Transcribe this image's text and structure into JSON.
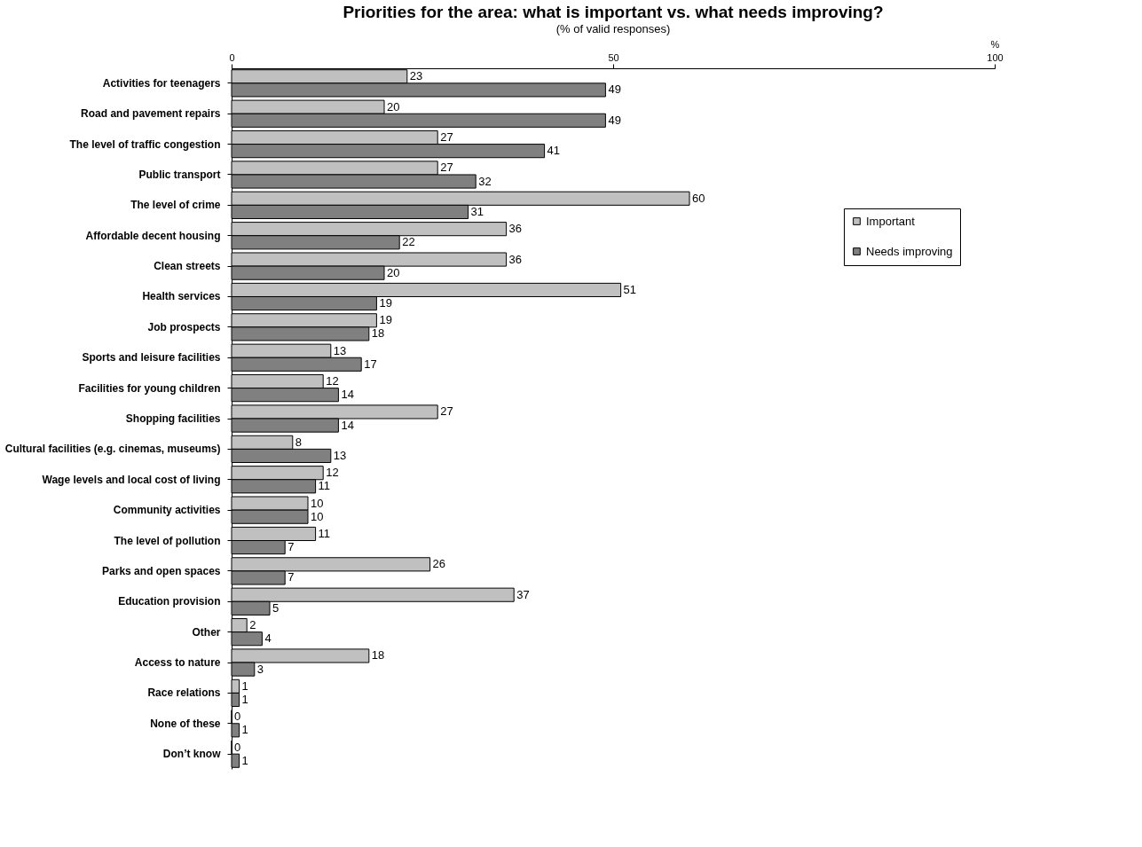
{
  "chart_data": {
    "type": "bar",
    "orientation": "horizontal",
    "title": "Priorities for the area: what is important vs. what needs improving?",
    "subtitle": "(% of valid responses)",
    "xlabel": "%",
    "categories": [
      "Activities for teenagers",
      "Road and pavement repairs",
      "The level of traffic congestion",
      "Public transport",
      "The level of crime",
      "Affordable decent housing",
      "Clean streets",
      "Health services",
      "Job prospects",
      "Sports and leisure facilities",
      "Facilities for young children",
      "Shopping facilities",
      "Cultural facilities (e.g. cinemas, museums)",
      "Wage levels and local cost of living",
      "Community activities",
      "The level of pollution",
      "Parks and open spaces",
      "Education provision",
      "Other",
      "Access to nature",
      "Race relations",
      "None of these",
      "Don’t know"
    ],
    "series": [
      {
        "name": "Important",
        "color": "#c0c0c0",
        "values": [
          23,
          20,
          27,
          27,
          60,
          36,
          36,
          51,
          19,
          13,
          12,
          27,
          8,
          12,
          10,
          11,
          26,
          37,
          2,
          18,
          1,
          0,
          0
        ]
      },
      {
        "name": "Needs improving",
        "color": "#808080",
        "values": [
          49,
          49,
          41,
          32,
          31,
          22,
          20,
          19,
          18,
          17,
          14,
          14,
          13,
          11,
          10,
          7,
          7,
          5,
          4,
          3,
          1,
          1,
          1
        ]
      }
    ],
    "xlim": [
      0,
      100
    ],
    "xticks": [
      0,
      50,
      100
    ],
    "data_labels": true,
    "legend": "right",
    "grid": false
  }
}
